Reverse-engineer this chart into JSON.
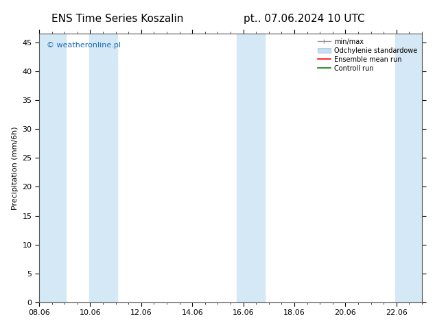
{
  "title_left": "ENS Time Series Koszalin",
  "title_right": "pt.. 07.06.2024 10 UTC",
  "ylabel": "Precipitation (mm/6h)",
  "watermark": "© weatheronline.pl",
  "watermark_color": "#1a6ab5",
  "xlim_start": 0,
  "xlim_end": 15,
  "ylim": [
    0,
    46.5
  ],
  "yticks": [
    0,
    5,
    10,
    15,
    20,
    25,
    30,
    35,
    40,
    45
  ],
  "xtick_labels": [
    "08.06",
    "10.06",
    "12.06",
    "14.06",
    "16.06",
    "18.06",
    "20.06",
    "22.06"
  ],
  "xtick_positions": [
    0,
    2,
    4,
    6,
    8,
    10,
    12,
    14
  ],
  "bg_color": "#ffffff",
  "plot_bg_color": "#ffffff",
  "shade_color": "#d5e8f5",
  "shade_alpha": 1.0,
  "shaded_bands": [
    [
      -0.05,
      1.05
    ],
    [
      1.95,
      3.05
    ],
    [
      7.75,
      8.85
    ],
    [
      13.95,
      15.05
    ]
  ],
  "legend_items": [
    {
      "label": "min/max",
      "color": "#aaaaaa",
      "type": "errorbar"
    },
    {
      "label": "Odchylenie standardowe",
      "color": "#c8ddf0",
      "type": "rect"
    },
    {
      "label": "Ensemble mean run",
      "color": "#ff0000",
      "type": "line"
    },
    {
      "label": "Controll run",
      "color": "#008000",
      "type": "line"
    }
  ],
  "title_fontsize": 11,
  "axis_fontsize": 8,
  "tick_fontsize": 8,
  "watermark_fontsize": 8
}
